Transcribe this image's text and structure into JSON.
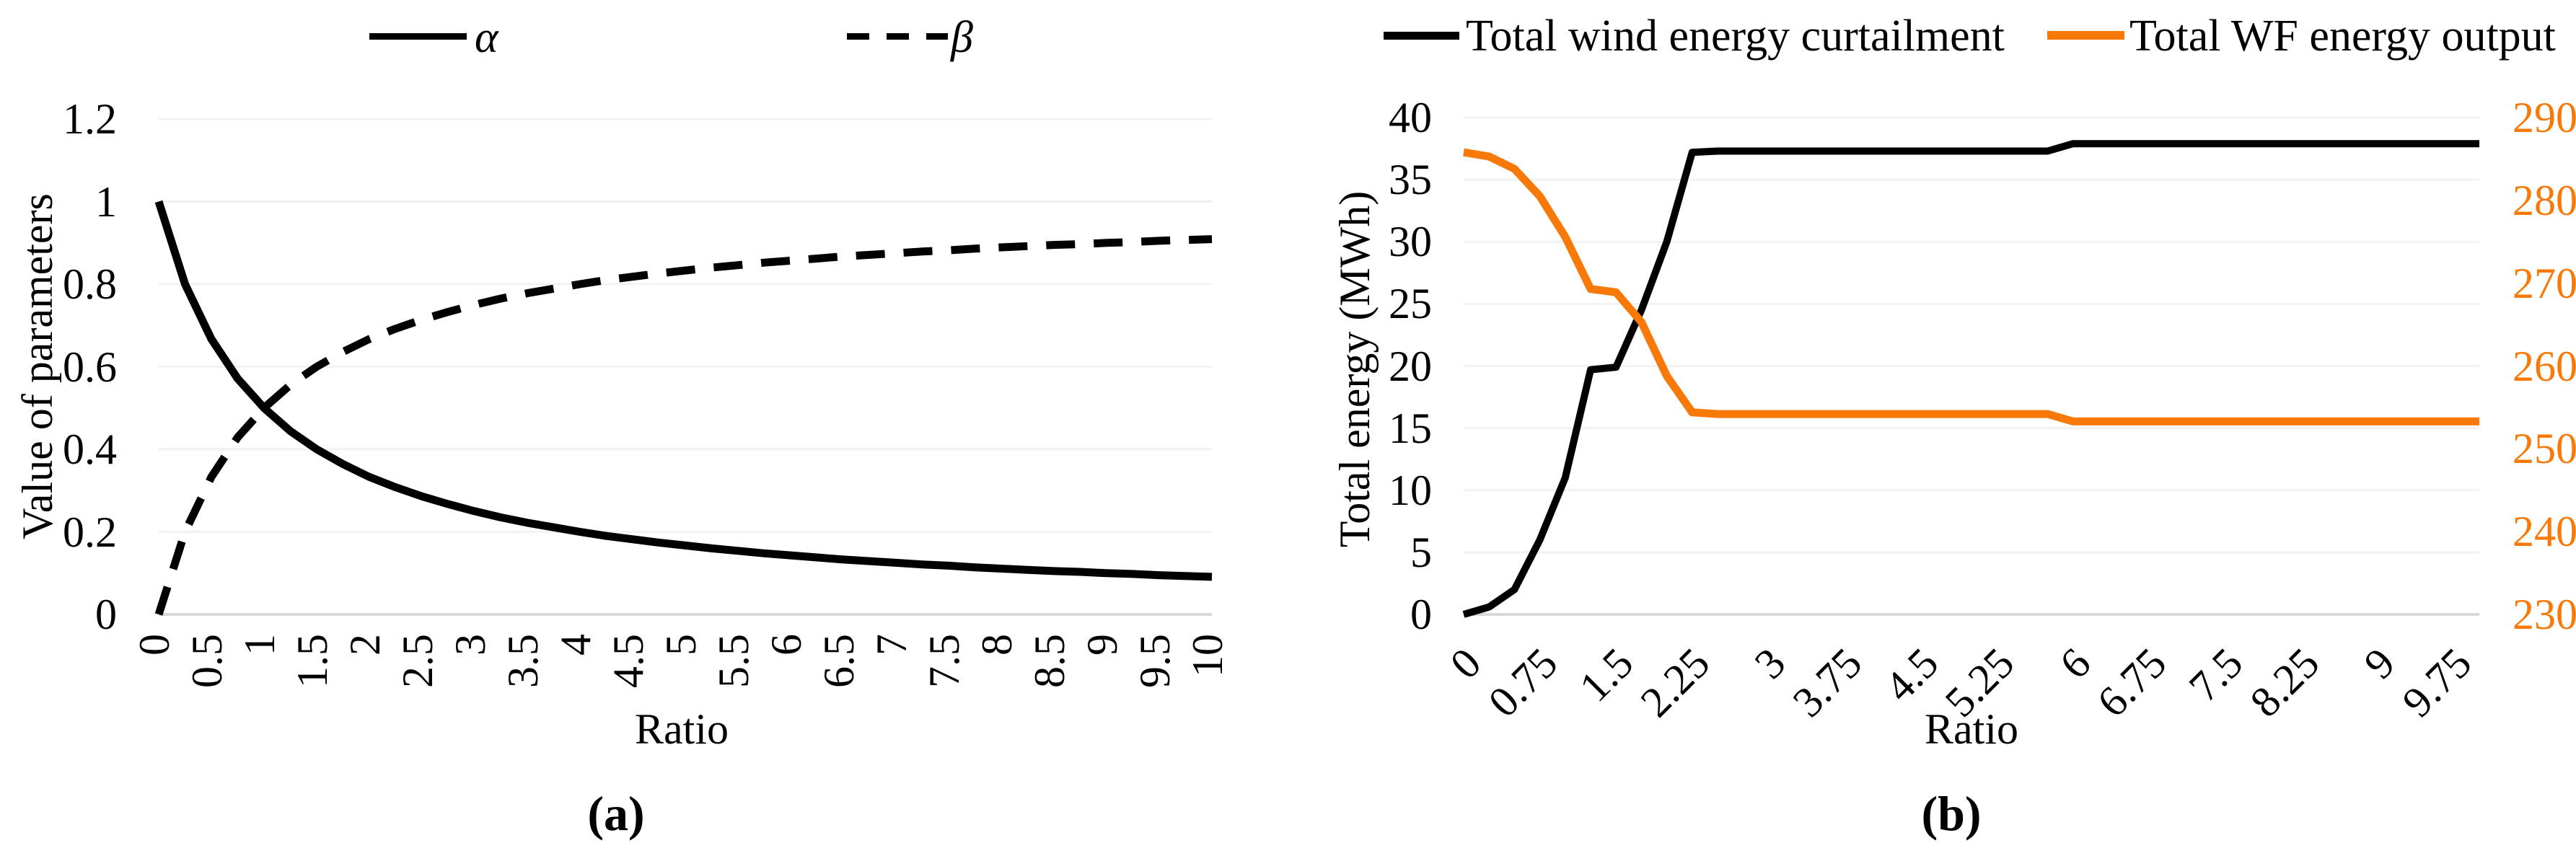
{
  "captions": {
    "a": "(a)",
    "b": "(b)"
  },
  "colors": {
    "series_black": "#000000",
    "series_orange": "#F97908",
    "gridline": "#F2F2F2",
    "axis_line": "#D9D9D9"
  },
  "chart_data": [
    {
      "type": "line",
      "panel": "a",
      "title": "",
      "xlabel": "Ratio",
      "ylabel": "Value of parameters",
      "grid": true,
      "legend_position": "top",
      "ylim": [
        0,
        1.2
      ],
      "yticks": [
        "0",
        "0.2",
        "0.4",
        "0.6",
        "0.8",
        "1",
        "1.2"
      ],
      "x_tick_labels": [
        "0",
        "0.5",
        "1",
        "1.5",
        "2",
        "2.5",
        "3",
        "3.5",
        "4",
        "4.5",
        "5",
        "5.5",
        "6",
        "6.5",
        "7",
        "7.5",
        "8",
        "8.5",
        "9",
        "9.5",
        "10"
      ],
      "x": [
        0,
        0.25,
        0.5,
        0.75,
        1,
        1.25,
        1.5,
        1.75,
        2,
        2.25,
        2.5,
        2.75,
        3,
        3.25,
        3.5,
        3.75,
        4,
        4.25,
        4.5,
        4.75,
        5,
        5.25,
        5.5,
        5.75,
        6,
        6.25,
        6.5,
        6.75,
        7,
        7.25,
        7.5,
        7.75,
        8,
        8.25,
        8.5,
        8.75,
        9,
        9.25,
        9.5,
        9.75,
        10
      ],
      "series": [
        {
          "name": "α",
          "line": "solid",
          "color": "#000000",
          "values": [
            1,
            0.8,
            0.667,
            0.571,
            0.5,
            0.444,
            0.4,
            0.364,
            0.333,
            0.308,
            0.286,
            0.267,
            0.25,
            0.235,
            0.222,
            0.211,
            0.2,
            0.19,
            0.182,
            0.174,
            0.167,
            0.16,
            0.154,
            0.148,
            0.143,
            0.138,
            0.133,
            0.129,
            0.125,
            0.121,
            0.118,
            0.114,
            0.111,
            0.108,
            0.105,
            0.103,
            0.1,
            0.098,
            0.095,
            0.093,
            0.091
          ]
        },
        {
          "name": "β",
          "line": "dashed",
          "color": "#000000",
          "values": [
            0,
            0.2,
            0.333,
            0.429,
            0.5,
            0.556,
            0.6,
            0.636,
            0.667,
            0.692,
            0.714,
            0.733,
            0.75,
            0.765,
            0.778,
            0.789,
            0.8,
            0.81,
            0.818,
            0.826,
            0.833,
            0.84,
            0.846,
            0.852,
            0.857,
            0.862,
            0.867,
            0.871,
            0.875,
            0.879,
            0.882,
            0.886,
            0.889,
            0.892,
            0.895,
            0.897,
            0.9,
            0.902,
            0.905,
            0.907,
            0.909
          ]
        }
      ]
    },
    {
      "type": "line",
      "panel": "b",
      "title": "",
      "xlabel": "Ratio",
      "ylabel_left": "Total energy (MWh)",
      "grid": true,
      "legend_position": "top",
      "left_ylim": [
        0,
        40
      ],
      "left_yticks": [
        "0",
        "5",
        "10",
        "15",
        "20",
        "25",
        "30",
        "35",
        "40"
      ],
      "right_ylim": [
        230,
        290
      ],
      "right_yticks": [
        "230",
        "240",
        "250",
        "260",
        "270",
        "280",
        "290"
      ],
      "x_tick_labels": [
        "0",
        "0.75",
        "1.5",
        "2.25",
        "3",
        "3.75",
        "4.5",
        "5.25",
        "6",
        "6.75",
        "7.5",
        "8.25",
        "9",
        "9.75"
      ],
      "x": [
        0,
        0.25,
        0.5,
        0.75,
        1,
        1.25,
        1.5,
        1.75,
        2,
        2.25,
        2.5,
        2.75,
        3,
        3.25,
        3.5,
        3.75,
        4,
        4.25,
        4.5,
        4.75,
        5,
        5.25,
        5.5,
        5.75,
        6,
        6.25,
        6.5,
        6.75,
        7,
        7.25,
        7.5,
        7.75,
        8,
        8.25,
        8.5,
        8.75,
        9,
        9.25,
        9.5,
        9.75,
        10
      ],
      "series": [
        {
          "name": "Total wind energy curtailment",
          "axis": "left",
          "line": "solid",
          "color": "#000000",
          "values": [
            0,
            0.6,
            2,
            6,
            11,
            19.7,
            19.9,
            24.5,
            30,
            37.2,
            37.3,
            37.3,
            37.3,
            37.3,
            37.3,
            37.3,
            37.3,
            37.3,
            37.3,
            37.3,
            37.3,
            37.3,
            37.3,
            37.3,
            37.9,
            37.9,
            37.9,
            37.9,
            37.9,
            37.9,
            37.9,
            37.9,
            37.9,
            37.9,
            37.9,
            37.9,
            37.9,
            37.9,
            37.9,
            37.9,
            37.9
          ]
        },
        {
          "name": "Total WF energy output",
          "axis": "right",
          "line": "solid",
          "color": "#F97908",
          "values": [
            285.8,
            285.3,
            283.8,
            280.5,
            275.6,
            269.3,
            268.9,
            265.3,
            258.8,
            254.4,
            254.2,
            254.2,
            254.2,
            254.2,
            254.2,
            254.2,
            254.2,
            254.2,
            254.2,
            254.2,
            254.2,
            254.2,
            254.2,
            254.2,
            253.3,
            253.3,
            253.3,
            253.3,
            253.3,
            253.3,
            253.3,
            253.3,
            253.3,
            253.3,
            253.3,
            253.3,
            253.3,
            253.3,
            253.3,
            253.3,
            253.3
          ]
        }
      ]
    }
  ]
}
